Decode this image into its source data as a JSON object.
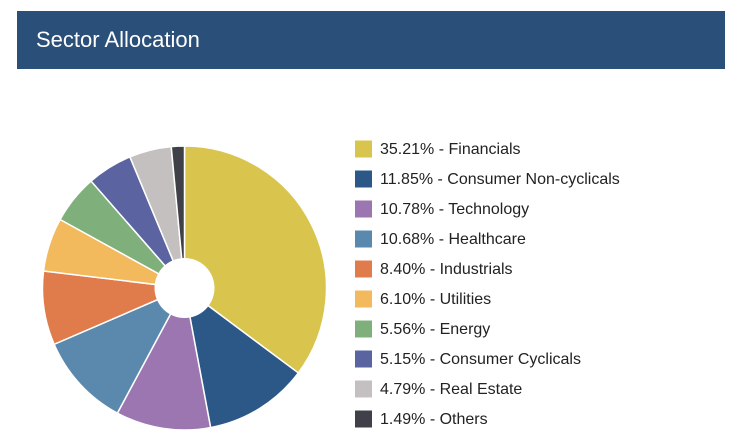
{
  "chart_data": {
    "type": "pie",
    "title": "Sector Allocation",
    "categories": [
      "Financials",
      "Consumer Non-cyclicals",
      "Technology",
      "Healthcare",
      "Industrials",
      "Utilities",
      "Energy",
      "Consumer Cyclicals",
      "Real Estate",
      "Others"
    ],
    "values": [
      35.21,
      11.85,
      10.78,
      10.68,
      8.4,
      6.1,
      5.56,
      5.15,
      4.79,
      1.49
    ],
    "value_labels": [
      "35.21%",
      "11.85%",
      "10.78%",
      "10.68%",
      "8.40%",
      "6.10%",
      "5.56%",
      "5.15%",
      "4.79%",
      "1.49%"
    ],
    "label_separator": " - ",
    "colors": [
      "#d9c44e",
      "#2b5887",
      "#9c76b0",
      "#5a89ad",
      "#e07b4b",
      "#f2b95d",
      "#7fb07c",
      "#5b63a0",
      "#c4c0c0",
      "#3f4048"
    ],
    "donut_hole": true
  }
}
